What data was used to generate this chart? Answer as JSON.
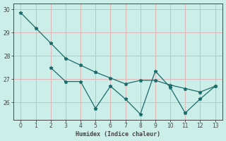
{
  "xlabel": "Humidex (Indice chaleur)",
  "bg_color": "#cceee8",
  "grid_color": "#ddb8b8",
  "line_color": "#1a6b6b",
  "axis_color": "#444444",
  "xlim": [
    -0.5,
    13.5
  ],
  "ylim": [
    25.25,
    30.25
  ],
  "yticks": [
    26,
    27,
    28,
    29,
    30
  ],
  "xticks": [
    0,
    1,
    2,
    3,
    4,
    5,
    6,
    7,
    8,
    9,
    10,
    11,
    12,
    13
  ],
  "top_x": [
    0,
    1,
    2,
    3,
    4,
    5,
    6,
    7,
    8,
    9,
    10,
    11,
    12,
    13
  ],
  "top_y": [
    29.85,
    29.2,
    28.55,
    27.9,
    27.6,
    27.3,
    27.05,
    26.8,
    26.95,
    26.95,
    26.75,
    26.6,
    26.45,
    26.7
  ],
  "bot_x": [
    2,
    3,
    4,
    5,
    6,
    7,
    8,
    9,
    10,
    11,
    12,
    13
  ],
  "bot_y": [
    27.5,
    26.9,
    26.9,
    25.75,
    26.7,
    26.15,
    25.5,
    27.35,
    26.65,
    25.55,
    26.15,
    26.7
  ],
  "marker": "*",
  "markersize": 3.5,
  "linewidth": 0.9
}
